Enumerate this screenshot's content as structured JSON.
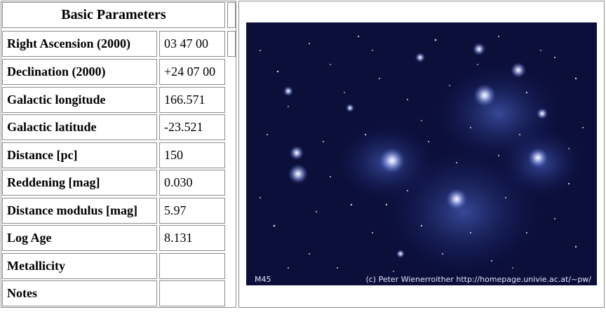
{
  "table": {
    "header": "Basic Parameters",
    "rows": [
      {
        "label": "Right Ascension (2000)",
        "value": "03 47 00"
      },
      {
        "label": "Declination (2000)",
        "value": "+24 07 00"
      },
      {
        "label": "Galactic longitude",
        "value": "166.571"
      },
      {
        "label": "Galactic latitude",
        "value": "-23.521"
      },
      {
        "label": "Distance [pc]",
        "value": "150"
      },
      {
        "label": "Reddening [mag]",
        "value": "0.030"
      },
      {
        "label": "Distance modulus [mag]",
        "value": "5.97"
      },
      {
        "label": "Log Age",
        "value": "8.131"
      },
      {
        "label": "Metallicity",
        "value": ""
      },
      {
        "label": "Notes",
        "value": ""
      }
    ]
  },
  "image": {
    "caption_left": "M45",
    "caption_right": "(c) Peter Wienerroither  http://homepage.univie.ac.at/~pw/"
  },
  "colors": {
    "border": "#8c8c8c",
    "sky": "#0b0f3a",
    "nebula": "#4a63c8"
  }
}
